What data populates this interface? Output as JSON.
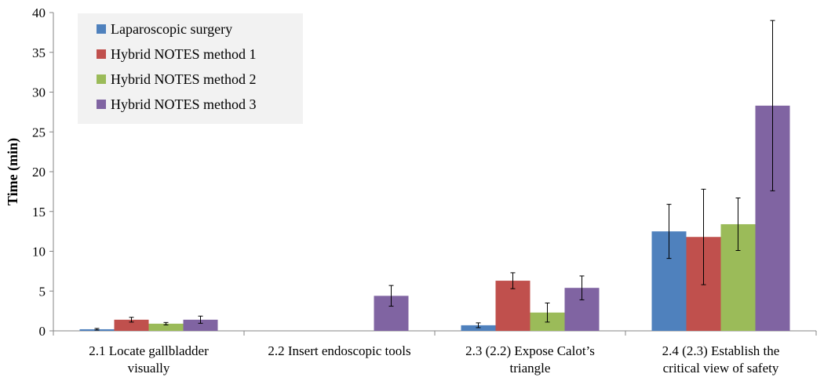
{
  "chart_data": {
    "type": "bar",
    "title": "",
    "xlabel": "",
    "ylabel": "Time (min)",
    "ylim": [
      0,
      40
    ],
    "yticks": [
      0,
      5,
      10,
      15,
      20,
      25,
      30,
      35,
      40
    ],
    "grid": false,
    "legend_position": "top-left",
    "categories": [
      [
        "2.1 Locate gallbladder",
        "visually"
      ],
      [
        "2.2 Insert endoscopic tools"
      ],
      [
        "2.3 (2.2) Expose Calot’s",
        "triangle"
      ],
      [
        "2.4 (2.3) Establish the",
        "critical view of safety"
      ]
    ],
    "series": [
      {
        "name": "Laparoscopic surgery",
        "color": "#4f81bd",
        "values": [
          0.2,
          0,
          0.7,
          12.5
        ],
        "errors": [
          0.1,
          0,
          0.3,
          3.4
        ]
      },
      {
        "name": "Hybrid NOTES method 1",
        "color": "#c0504d",
        "values": [
          1.4,
          0,
          6.3,
          11.8
        ],
        "errors": [
          0.3,
          0,
          1.0,
          6.0
        ]
      },
      {
        "name": "Hybrid NOTES method 2",
        "color": "#9bbb59",
        "values": [
          0.9,
          0,
          2.3,
          13.4
        ],
        "errors": [
          0.15,
          0,
          1.2,
          3.3
        ]
      },
      {
        "name": "Hybrid NOTES method 3",
        "color": "#8064a2",
        "values": [
          1.4,
          4.4,
          5.4,
          28.3
        ],
        "errors": [
          0.45,
          1.3,
          1.5,
          10.7
        ]
      }
    ]
  }
}
